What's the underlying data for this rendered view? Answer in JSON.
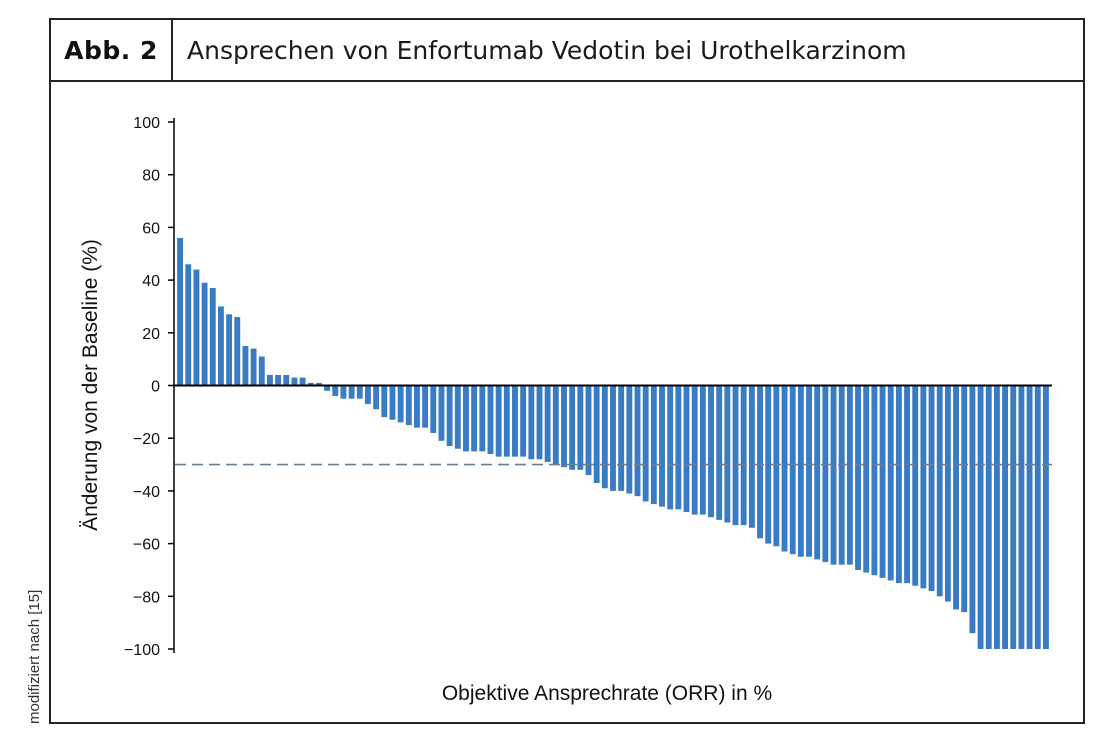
{
  "figure": {
    "label": "Abb. 2",
    "title": "Ansprechen von Enfortumab Vedotin bei Urothelkarzinom",
    "side_note": "modifiziert nach [15]"
  },
  "colors": {
    "bar": "#3a7cc3",
    "threshold": "#6a7f93",
    "axis": "#000000"
  },
  "chart_data": {
    "type": "bar",
    "xlabel": "Objektive Ansprechrate (ORR) in %",
    "ylabel": "Änderung von der Baseline (%)",
    "ylim": [
      -100,
      100
    ],
    "yticks": [
      100,
      80,
      60,
      40,
      20,
      0,
      -20,
      -40,
      -60,
      -80,
      -100
    ],
    "ytick_labels": [
      "100",
      "80",
      "60",
      "40",
      "20",
      "0",
      "−20",
      "−40",
      "−60",
      "−80",
      "−100"
    ],
    "threshold": -30,
    "grid": false,
    "values": [
      56,
      46,
      44,
      39,
      37,
      30,
      27,
      26,
      15,
      14,
      11,
      4,
      4,
      4,
      3,
      3,
      1,
      1,
      -2,
      -4,
      -5,
      -5,
      -5,
      -7,
      -9,
      -12,
      -13,
      -14,
      -15,
      -16,
      -16,
      -18,
      -21,
      -23,
      -24,
      -25,
      -25,
      -25,
      -26,
      -27,
      -27,
      -27,
      -27,
      -28,
      -28,
      -29,
      -30,
      -31,
      -32,
      -32,
      -34,
      -37,
      -39,
      -40,
      -40,
      -41,
      -42,
      -44,
      -45,
      -46,
      -47,
      -47,
      -48,
      -49,
      -49,
      -50,
      -51,
      -52,
      -53,
      -53,
      -54,
      -58,
      -60,
      -61,
      -63,
      -64,
      -65,
      -65,
      -66,
      -67,
      -68,
      -68,
      -68,
      -70,
      -71,
      -72,
      -73,
      -74,
      -75,
      -75,
      -76,
      -77,
      -78,
      -80,
      -82,
      -85,
      -86,
      -94,
      -100,
      -100,
      -100,
      -100,
      -100,
      -100,
      -100,
      -100,
      -100
    ]
  }
}
